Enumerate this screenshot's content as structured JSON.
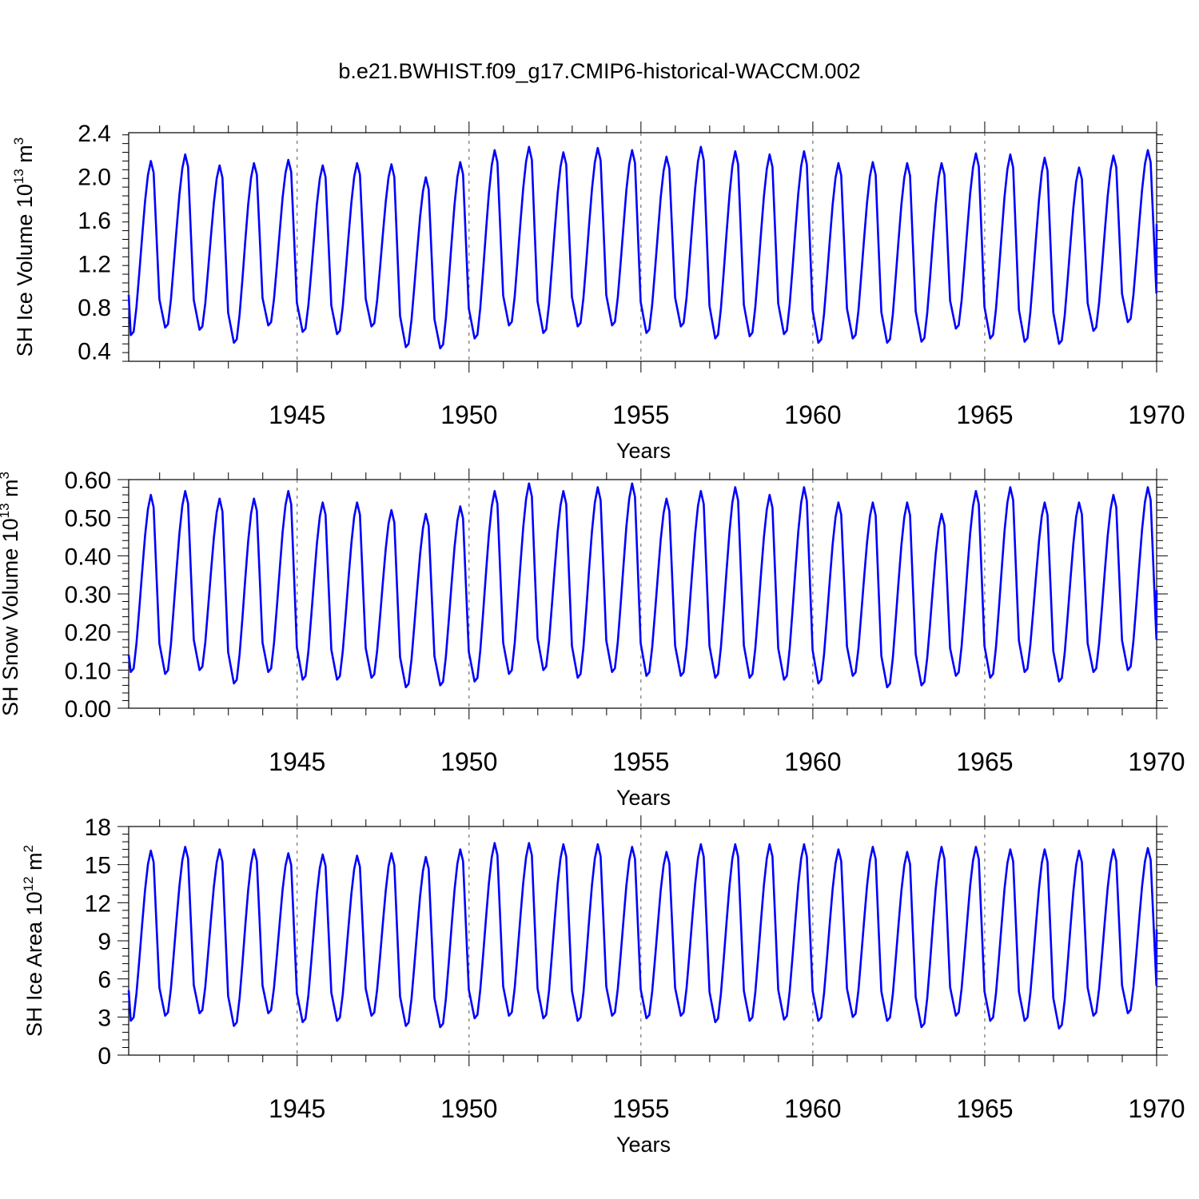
{
  "title": "b.e21.BWHIST.f09_g17.CMIP6-historical-WACCM.002",
  "line_color": "#0000ff",
  "chart_data": [
    {
      "type": "line",
      "id": "ice-volume",
      "ylabel": "SH Ice Volume 10",
      "ylabel_sup": "13",
      "ylabel_unit": " m",
      "ylabel_unit_sup": "3",
      "xlabel": "Years",
      "xlim": [
        1940.1,
        1970.0
      ],
      "ylim": [
        0.3,
        2.4
      ],
      "yticks": [
        0.4,
        0.8,
        1.2,
        1.6,
        2.0,
        2.4
      ],
      "ytick_labels": [
        "0.4",
        "0.8",
        "1.2",
        "1.6",
        "2.0",
        "2.4"
      ],
      "xticks": [
        1945,
        1950,
        1955,
        1960,
        1965,
        1970
      ],
      "xtick_labels": [
        "1945",
        "1950",
        "1955",
        "1960",
        "1965",
        "1970"
      ],
      "start_year": 1940.1,
      "start_value": 0.91,
      "annual_max": [
        2.14,
        2.2,
        2.1,
        2.12,
        2.15,
        2.1,
        2.12,
        2.11,
        1.99,
        2.13,
        2.24,
        2.27,
        2.22,
        2.26,
        2.24,
        2.18,
        2.27,
        2.23,
        2.2,
        2.23,
        2.12,
        2.13,
        2.12,
        2.12,
        2.21,
        2.2,
        2.17,
        2.08,
        2.19,
        2.24
      ],
      "annual_min": [
        0.54,
        0.61,
        0.59,
        0.47,
        0.63,
        0.57,
        0.55,
        0.62,
        0.43,
        0.42,
        0.51,
        0.63,
        0.56,
        0.62,
        0.63,
        0.56,
        0.62,
        0.51,
        0.53,
        0.55,
        0.47,
        0.51,
        0.47,
        0.48,
        0.6,
        0.51,
        0.48,
        0.46,
        0.58,
        0.66
      ],
      "end_value": 1.56
    },
    {
      "type": "line",
      "id": "snow-volume",
      "ylabel": "SH Snow Volume 10",
      "ylabel_sup": "13",
      "ylabel_unit": " m",
      "ylabel_unit_sup": "3",
      "xlabel": "Years",
      "xlim": [
        1940.1,
        1970.0
      ],
      "ylim": [
        0.0,
        0.6
      ],
      "yticks": [
        0.0,
        0.1,
        0.2,
        0.3,
        0.4,
        0.5,
        0.6
      ],
      "ytick_labels": [
        "0.00",
        "0.10",
        "0.20",
        "0.30",
        "0.40",
        "0.50",
        "0.60"
      ],
      "xticks": [
        1945,
        1950,
        1955,
        1960,
        1965,
        1970
      ],
      "xtick_labels": [
        "1945",
        "1950",
        "1955",
        "1960",
        "1965",
        "1970"
      ],
      "start_year": 1940.1,
      "start_value": 0.14,
      "annual_max": [
        0.56,
        0.57,
        0.55,
        0.55,
        0.57,
        0.54,
        0.54,
        0.52,
        0.51,
        0.53,
        0.57,
        0.59,
        0.57,
        0.58,
        0.59,
        0.55,
        0.57,
        0.58,
        0.56,
        0.58,
        0.54,
        0.54,
        0.54,
        0.51,
        0.57,
        0.58,
        0.54,
        0.54,
        0.56,
        0.58
      ],
      "annual_min": [
        0.095,
        0.09,
        0.1,
        0.065,
        0.095,
        0.075,
        0.075,
        0.08,
        0.055,
        0.06,
        0.07,
        0.09,
        0.1,
        0.08,
        0.095,
        0.085,
        0.085,
        0.08,
        0.08,
        0.075,
        0.065,
        0.085,
        0.055,
        0.06,
        0.085,
        0.08,
        0.095,
        0.07,
        0.095,
        0.1
      ],
      "end_value": 0.31
    },
    {
      "type": "line",
      "id": "ice-area",
      "ylabel": "SH Ice Area 10",
      "ylabel_sup": "12",
      "ylabel_unit": " m",
      "ylabel_unit_sup": "2",
      "xlabel": "Years",
      "xlim": [
        1940.1,
        1970.0
      ],
      "ylim": [
        0,
        18
      ],
      "yticks": [
        0,
        3,
        6,
        9,
        12,
        15,
        18
      ],
      "ytick_labels": [
        "0",
        "3",
        "6",
        "9",
        "12",
        "15",
        "18"
      ],
      "xticks": [
        1945,
        1950,
        1955,
        1960,
        1965,
        1970
      ],
      "xtick_labels": [
        "1945",
        "1950",
        "1955",
        "1960",
        "1965",
        "1970"
      ],
      "start_year": 1940.1,
      "start_value": 5.1,
      "annual_max": [
        16.1,
        16.4,
        16.2,
        16.2,
        15.9,
        15.8,
        15.7,
        15.9,
        15.6,
        16.2,
        16.7,
        16.7,
        16.6,
        16.6,
        16.4,
        16.0,
        16.6,
        16.6,
        16.6,
        16.6,
        16.2,
        16.4,
        16.0,
        16.4,
        16.4,
        16.2,
        16.2,
        16.1,
        16.2,
        16.3
      ],
      "annual_min": [
        2.7,
        3.1,
        3.3,
        2.3,
        3.3,
        2.6,
        2.7,
        3.1,
        2.3,
        2.2,
        2.9,
        3.1,
        2.9,
        2.7,
        3.1,
        2.9,
        3.1,
        2.6,
        2.7,
        2.8,
        2.7,
        3.0,
        2.7,
        2.2,
        3.1,
        2.7,
        2.7,
        2.1,
        3.1,
        3.3
      ],
      "end_value": 9.9
    }
  ]
}
